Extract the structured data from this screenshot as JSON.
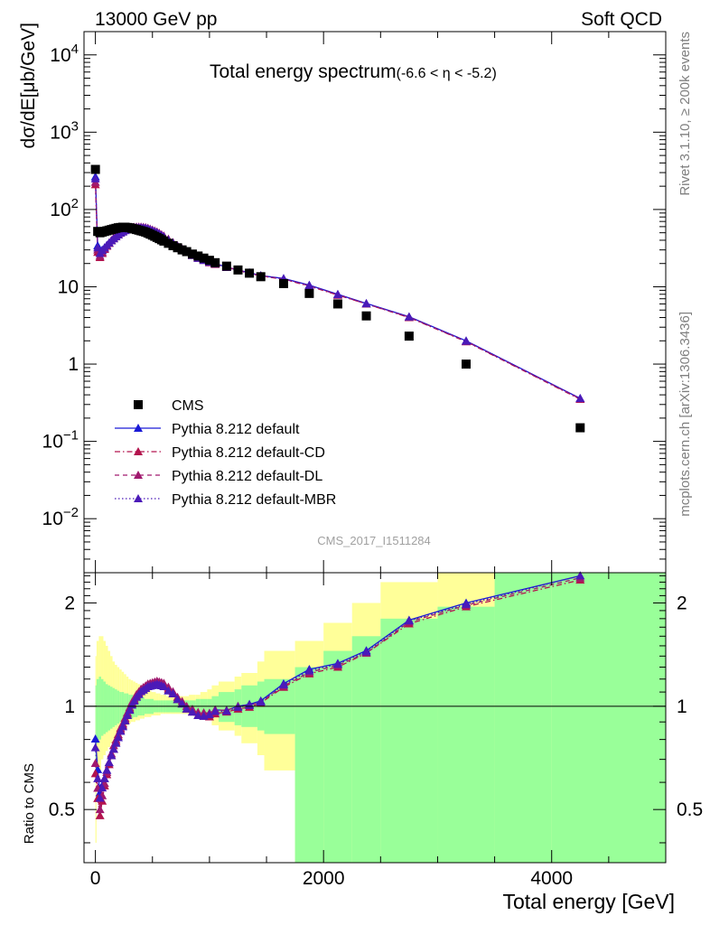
{
  "header": {
    "left": "13000 GeV pp",
    "right": "Soft QCD"
  },
  "side_labels": {
    "rivet": "Rivet 3.1.10, ≥ 200k events",
    "mcplots": "mcplots.cern.ch [arXiv:1306.3436]"
  },
  "analysis_id": "CMS_2017_I1511284",
  "colors": {
    "cms": "#000000",
    "default": "#1a1ad6",
    "cd": "#b3134d",
    "dl": "#a0196e",
    "mbr": "#4b1ab8",
    "band_yellow": "#ffff99",
    "band_green": "#99ff99"
  },
  "chart_data": [
    {
      "type": "scatter",
      "title": "Total energy spectrum",
      "title_sub": "(-6.6 < η < -5.2)",
      "ylabel": "dσ/dE[μb/GeV]",
      "yscale": "log",
      "ylim": [
        0.002,
        20000
      ],
      "xlim": [
        -100,
        5000
      ],
      "y_ticks": [
        {
          "v": 10000,
          "label": "10",
          "exp": "4"
        },
        {
          "v": 1000,
          "label": "10",
          "exp": "3"
        },
        {
          "v": 100,
          "label": "10",
          "exp": "2"
        },
        {
          "v": 10,
          "label": "10",
          "exp": ""
        },
        {
          "v": 1,
          "label": "1",
          "exp": ""
        },
        {
          "v": 0.1,
          "label": "10",
          "exp": "−1"
        },
        {
          "v": 0.01,
          "label": "10",
          "exp": "−2"
        }
      ],
      "legend_position": "lower-left",
      "series": [
        {
          "name": "CMS",
          "x": [
            0,
            20,
            40,
            60,
            80,
            100,
            120,
            140,
            160,
            180,
            200,
            220,
            240,
            260,
            280,
            300,
            320,
            340,
            360,
            380,
            400,
            420,
            440,
            460,
            480,
            500,
            520,
            540,
            560,
            580,
            600,
            640,
            680,
            720,
            760,
            800,
            850,
            900,
            950,
            1000,
            1050,
            1150,
            1250,
            1350,
            1450,
            1650,
            1875,
            2125,
            2375,
            2750,
            3250,
            4250
          ],
          "y": [
            330,
            52,
            50,
            51,
            52,
            53,
            54,
            55,
            56,
            57,
            58,
            58.5,
            59,
            59,
            58.5,
            58,
            57,
            56,
            55,
            54,
            53,
            52,
            51,
            49.5,
            48,
            46.5,
            45,
            43.5,
            42,
            40.5,
            39,
            36.5,
            34,
            32,
            30,
            28.5,
            26.5,
            25,
            23.5,
            22,
            20.5,
            18.5,
            16.5,
            15,
            13.5,
            11,
            8.2,
            6,
            4.2,
            2.3,
            1.0,
            0.15
          ]
        },
        {
          "name": "Pythia 8.212 default",
          "x": [
            0,
            20,
            40,
            60,
            80,
            100,
            120,
            140,
            160,
            180,
            200,
            220,
            240,
            260,
            280,
            300,
            320,
            340,
            360,
            380,
            400,
            420,
            440,
            460,
            480,
            500,
            520,
            540,
            560,
            580,
            600,
            640,
            680,
            720,
            760,
            800,
            850,
            900,
            950,
            1000,
            1050,
            1150,
            1250,
            1350,
            1450,
            1650,
            1875,
            2125,
            2375,
            2750,
            3250,
            4250
          ],
          "y": [
            265,
            34,
            28,
            30,
            32,
            34.5,
            37,
            39.5,
            42,
            44.5,
            47,
            49.5,
            51.5,
            53.5,
            55,
            56.5,
            57.5,
            58,
            58.5,
            58.5,
            58.5,
            58,
            57.5,
            56.5,
            55,
            53.5,
            52,
            50.5,
            48.5,
            46.5,
            44.5,
            40.5,
            37,
            33.5,
            30.5,
            28,
            25.5,
            23.5,
            22,
            21,
            20,
            18,
            16.5,
            15.2,
            14,
            12.8,
            10.5,
            8,
            6.1,
            4.1,
            2,
            0.36
          ]
        },
        {
          "name": "Pythia 8.212 default-CD",
          "x": [
            0,
            20,
            40,
            60,
            80,
            100,
            120,
            140,
            160,
            180,
            200,
            220,
            240,
            260,
            280,
            300,
            320,
            340,
            360,
            380,
            400,
            420,
            440,
            460,
            480,
            500,
            520,
            540,
            560,
            580,
            600,
            640,
            680,
            720,
            760,
            800,
            850,
            900,
            950,
            1000,
            1050,
            1150,
            1250,
            1350,
            1450,
            1650,
            1875,
            2125,
            2375,
            2750,
            3250,
            4250
          ],
          "y": [
            210,
            28,
            24,
            27,
            30.5,
            33.5,
            36.5,
            39.5,
            42,
            45,
            47.5,
            50,
            52,
            54,
            55.5,
            57,
            58,
            58.5,
            59,
            59,
            59,
            58.5,
            58,
            57,
            55.5,
            54,
            52.5,
            51,
            49,
            47,
            45,
            41,
            37,
            33.5,
            30.5,
            28,
            25.5,
            23.5,
            22,
            20.5,
            19.5,
            17.8,
            16.2,
            14.9,
            13.8,
            12.5,
            10.2,
            7.8,
            6,
            4,
            1.95,
            0.35
          ]
        },
        {
          "name": "Pythia 8.212 default-DL",
          "x": [
            0,
            20,
            40,
            60,
            80,
            100,
            120,
            140,
            160,
            180,
            200,
            220,
            240,
            260,
            280,
            300,
            320,
            340,
            360,
            380,
            400,
            420,
            440,
            460,
            480,
            500,
            520,
            540,
            560,
            580,
            600,
            640,
            680,
            720,
            760,
            800,
            850,
            900,
            950,
            1000,
            1050,
            1150,
            1250,
            1350,
            1450,
            1650,
            1875,
            2125,
            2375,
            2750,
            3250,
            4250
          ],
          "y": [
            225,
            30,
            25,
            28,
            31,
            34,
            37,
            40,
            43,
            45.5,
            48,
            50.5,
            52.5,
            54.5,
            56,
            57.5,
            58.5,
            59,
            59.5,
            59.5,
            59.5,
            59,
            58.5,
            57.5,
            56,
            54.5,
            53,
            51.5,
            49.5,
            47.5,
            45.5,
            41.5,
            37.5,
            34,
            31,
            28.5,
            26,
            24,
            22.5,
            21,
            20,
            18,
            16.5,
            15.1,
            13.9,
            12.6,
            10.3,
            7.9,
            6,
            4.05,
            1.97,
            0.355
          ]
        },
        {
          "name": "Pythia 8.212 default-MBR",
          "x": [
            0,
            20,
            40,
            60,
            80,
            100,
            120,
            140,
            160,
            180,
            200,
            220,
            240,
            260,
            280,
            300,
            320,
            340,
            360,
            380,
            400,
            420,
            440,
            460,
            480,
            500,
            520,
            540,
            560,
            580,
            600,
            640,
            680,
            720,
            760,
            800,
            850,
            900,
            950,
            1000,
            1050,
            1150,
            1250,
            1350,
            1450,
            1650,
            1875,
            2125,
            2375,
            2750,
            3250,
            4250
          ],
          "y": [
            250,
            32,
            27,
            29.5,
            32,
            34.5,
            37,
            39.5,
            42,
            44.5,
            47,
            49.5,
            51.5,
            53.5,
            55,
            56.5,
            57.5,
            58,
            58.5,
            58.5,
            58.5,
            58,
            57.5,
            56.5,
            55,
            53.5,
            52,
            50.5,
            48.5,
            46.5,
            44.5,
            40.5,
            37,
            33.5,
            30.5,
            28,
            25.5,
            23.5,
            22,
            20.8,
            19.8,
            17.9,
            16.4,
            15.1,
            13.9,
            12.7,
            10.4,
            7.95,
            6.05,
            4.08,
            1.98,
            0.36
          ]
        }
      ]
    },
    {
      "type": "line",
      "ylabel": "Ratio to CMS",
      "xlabel": "Total energy [GeV]",
      "yscale": "log",
      "ylim": [
        0.35,
        2.45
      ],
      "xlim": [
        -100,
        5000
      ],
      "y_ticks": [
        0.5,
        1,
        2
      ],
      "x_ticks": [
        0,
        2000,
        4000
      ],
      "reference_line": 1,
      "bands": {
        "edges": [
          0,
          10,
          30,
          50,
          70,
          90,
          110,
          130,
          150,
          170,
          190,
          210,
          230,
          250,
          270,
          290,
          310,
          330,
          350,
          370,
          390,
          410,
          430,
          450,
          470,
          490,
          510,
          530,
          550,
          570,
          590,
          620,
          660,
          700,
          740,
          780,
          820,
          880,
          920,
          980,
          1020,
          1080,
          1220,
          1280,
          1420,
          1480,
          1750,
          2000,
          2250,
          2500,
          3000,
          3500,
          4000,
          5000
        ],
        "green_lo": [
          0.6,
          0.78,
          0.8,
          0.82,
          0.83,
          0.84,
          0.85,
          0.86,
          0.87,
          0.88,
          0.89,
          0.9,
          0.9,
          0.91,
          0.91,
          0.92,
          0.92,
          0.93,
          0.93,
          0.94,
          0.94,
          0.94,
          0.95,
          0.95,
          0.95,
          0.95,
          0.96,
          0.96,
          0.96,
          0.96,
          0.96,
          0.96,
          0.96,
          0.96,
          0.96,
          0.96,
          0.96,
          0.95,
          0.95,
          0.95,
          0.93,
          0.9,
          0.88,
          0.87,
          0.85,
          0.83,
          0.35,
          0.35,
          0.35,
          0.35,
          0.35,
          0.35,
          0.35
        ],
        "green_hi": [
          1.15,
          1.2,
          1.22,
          1.2,
          1.18,
          1.16,
          1.15,
          1.14,
          1.13,
          1.12,
          1.11,
          1.1,
          1.1,
          1.09,
          1.09,
          1.08,
          1.08,
          1.07,
          1.07,
          1.06,
          1.06,
          1.06,
          1.05,
          1.05,
          1.05,
          1.05,
          1.04,
          1.04,
          1.04,
          1.04,
          1.04,
          1.04,
          1.04,
          1.04,
          1.04,
          1.04,
          1.04,
          1.05,
          1.05,
          1.05,
          1.07,
          1.1,
          1.12,
          1.15,
          1.18,
          1.2,
          1.3,
          1.45,
          1.6,
          1.8,
          1.95,
          2.45,
          2.45
        ],
        "yellow_lo": [
          0.4,
          0.6,
          0.65,
          0.7,
          0.72,
          0.74,
          0.76,
          0.78,
          0.8,
          0.82,
          0.83,
          0.85,
          0.86,
          0.87,
          0.88,
          0.89,
          0.9,
          0.9,
          0.91,
          0.91,
          0.92,
          0.92,
          0.93,
          0.93,
          0.93,
          0.94,
          0.94,
          0.94,
          0.94,
          0.95,
          0.95,
          0.95,
          0.95,
          0.95,
          0.95,
          0.95,
          0.95,
          0.94,
          0.93,
          0.92,
          0.88,
          0.85,
          0.82,
          0.78,
          0.72,
          0.65,
          0.35,
          0.35,
          0.35,
          0.35,
          0.35,
          0.35,
          0.35
        ],
        "yellow_hi": [
          1.4,
          1.55,
          1.6,
          1.6,
          1.55,
          1.5,
          1.45,
          1.4,
          1.35,
          1.32,
          1.3,
          1.28,
          1.26,
          1.24,
          1.22,
          1.2,
          1.19,
          1.18,
          1.17,
          1.16,
          1.15,
          1.14,
          1.13,
          1.12,
          1.11,
          1.1,
          1.1,
          1.09,
          1.09,
          1.08,
          1.08,
          1.07,
          1.07,
          1.07,
          1.07,
          1.07,
          1.08,
          1.08,
          1.1,
          1.12,
          1.15,
          1.18,
          1.22,
          1.25,
          1.35,
          1.45,
          1.55,
          1.75,
          2.0,
          2.3,
          2.45,
          2.45,
          2.45
        ]
      }
    }
  ]
}
